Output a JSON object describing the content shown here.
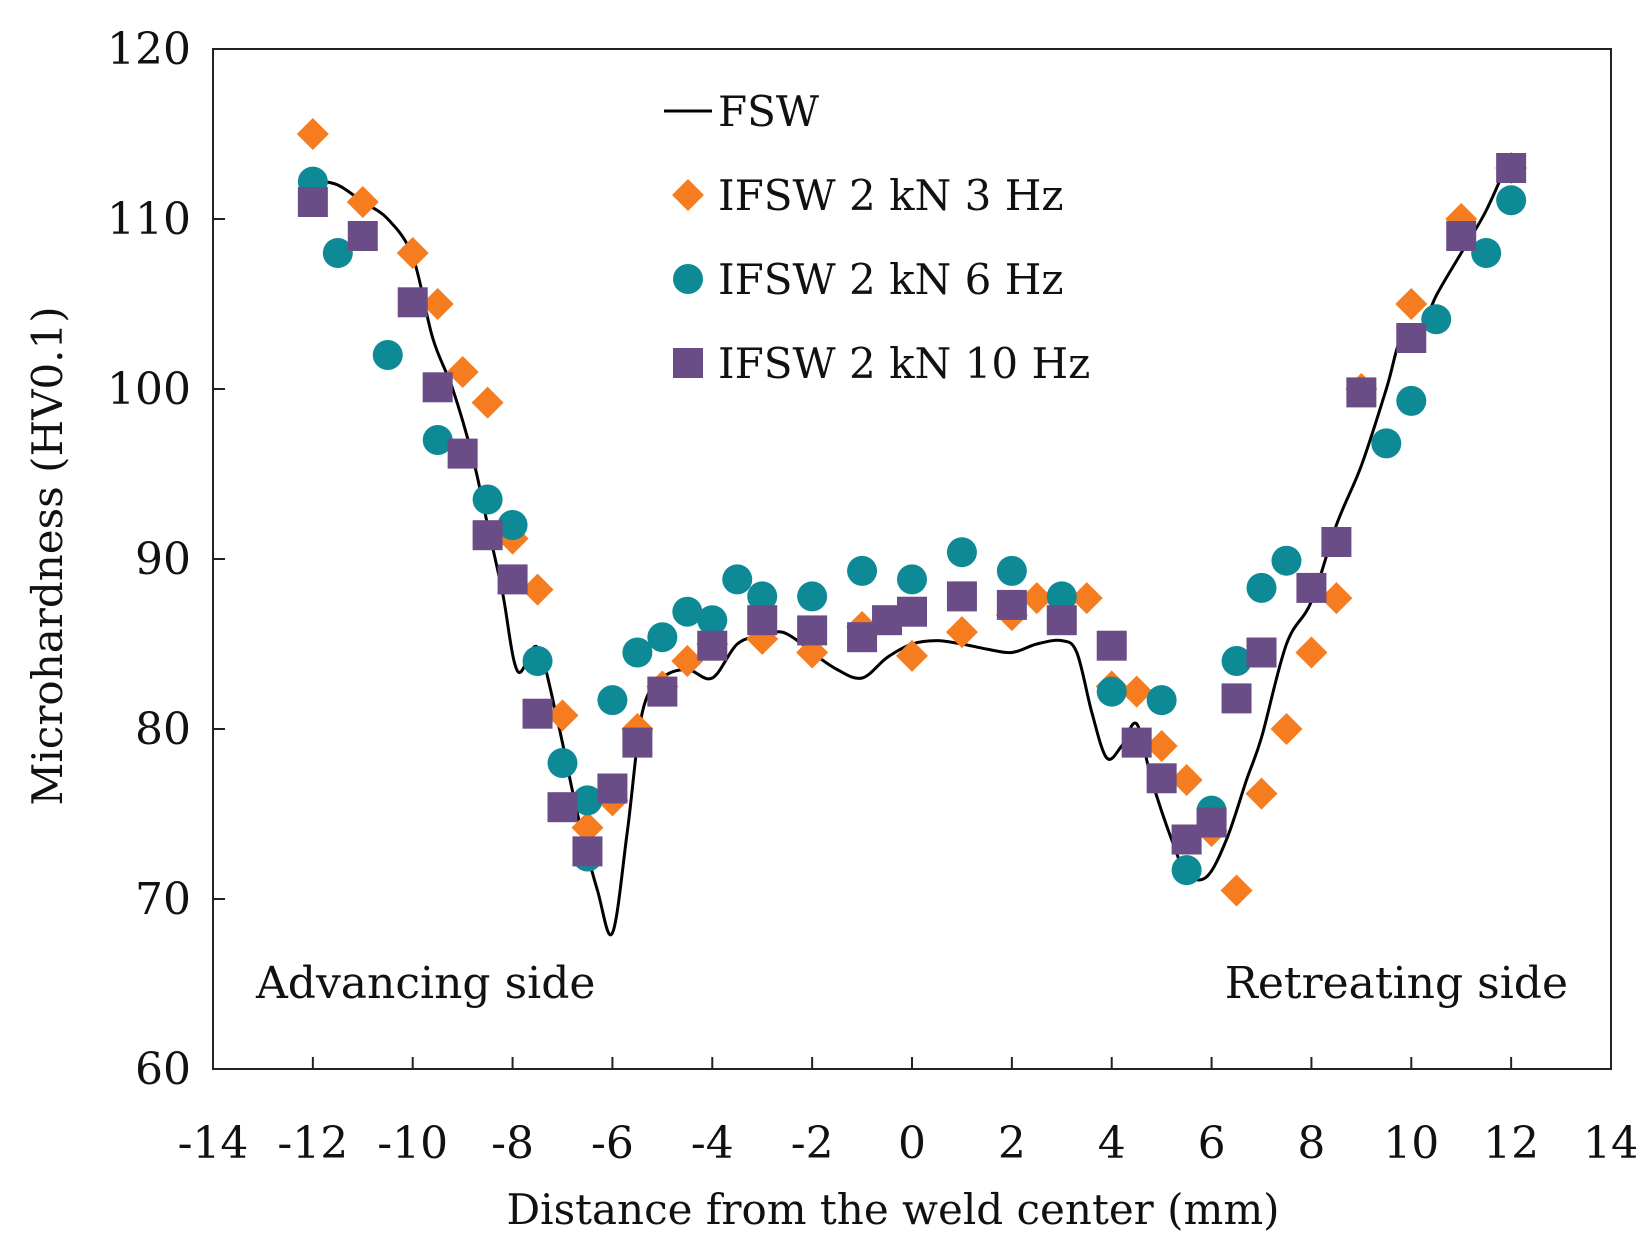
{
  "chart_data": {
    "type": "scatter",
    "title": "",
    "xlabel": "Distance from the weld center (mm)",
    "ylabel": "Microhardness (HV0.1)",
    "xlim": [
      -14,
      14
    ],
    "ylim": [
      60,
      120
    ],
    "xticks": [
      -14,
      -12,
      -10,
      -8,
      -6,
      -4,
      -2,
      0,
      2,
      4,
      6,
      8,
      10,
      12,
      14
    ],
    "yticks": [
      60,
      70,
      80,
      90,
      100,
      110,
      120
    ],
    "grid": false,
    "legend_position": "top-center",
    "annotations": [
      {
        "name": "advancing-side-label",
        "text": "Advancing side",
        "position": "bottom-left"
      },
      {
        "name": "retreating-side-label",
        "text": "Retreating side",
        "position": "bottom-right"
      }
    ],
    "series": [
      {
        "name": "FSW",
        "style": "line",
        "color": "#000000",
        "points": [
          [
            -12,
            112.3
          ],
          [
            -11.5,
            112
          ],
          [
            -11,
            111
          ],
          [
            -10.5,
            110
          ],
          [
            -10,
            107.8
          ],
          [
            -9.6,
            103
          ],
          [
            -9.2,
            100
          ],
          [
            -8.8,
            96
          ],
          [
            -8.5,
            92
          ],
          [
            -8.2,
            88
          ],
          [
            -7.9,
            83.4
          ],
          [
            -7.5,
            84.8
          ],
          [
            -7.1,
            80.5
          ],
          [
            -6.7,
            75
          ],
          [
            -6.3,
            70.5
          ],
          [
            -6,
            68
          ],
          [
            -5.7,
            74
          ],
          [
            -5.4,
            81
          ],
          [
            -5,
            83
          ],
          [
            -4.5,
            83.5
          ],
          [
            -4,
            83
          ],
          [
            -3.5,
            85
          ],
          [
            -3,
            85.5
          ],
          [
            -2.6,
            85.7
          ],
          [
            -2.2,
            85
          ],
          [
            -2,
            84.5
          ],
          [
            -1.5,
            83.5
          ],
          [
            -1,
            83
          ],
          [
            -0.5,
            84.2
          ],
          [
            0,
            85
          ],
          [
            0.5,
            85.2
          ],
          [
            1,
            85
          ],
          [
            1.5,
            84.7
          ],
          [
            2,
            84.5
          ],
          [
            2.5,
            85
          ],
          [
            3,
            85.2
          ],
          [
            3.3,
            84.5
          ],
          [
            3.6,
            81
          ],
          [
            3.9,
            78.3
          ],
          [
            4.2,
            79
          ],
          [
            4.5,
            80.3
          ],
          [
            4.8,
            77
          ],
          [
            5.2,
            73.5
          ],
          [
            5.5,
            71.5
          ],
          [
            5.9,
            71.3
          ],
          [
            6.3,
            73.5
          ],
          [
            6.7,
            77
          ],
          [
            7,
            79.5
          ],
          [
            7.5,
            85
          ],
          [
            8,
            87.5
          ],
          [
            8.5,
            92
          ],
          [
            9,
            95.5
          ],
          [
            9.5,
            100
          ],
          [
            9.8,
            103
          ],
          [
            10.2,
            103.5
          ],
          [
            10.5,
            105.5
          ],
          [
            11,
            108
          ],
          [
            11.5,
            110.5
          ],
          [
            12,
            113.8
          ]
        ]
      },
      {
        "name": "IFSW 2 kN 3 Hz",
        "style": "diamond",
        "color": "#F57C1F",
        "points": [
          [
            -12,
            115
          ],
          [
            -11,
            111
          ],
          [
            -10,
            108
          ],
          [
            -9.5,
            105
          ],
          [
            -9,
            101
          ],
          [
            -8.5,
            99.2
          ],
          [
            -8,
            91.2
          ],
          [
            -7.5,
            88.2
          ],
          [
            -7,
            80.8
          ],
          [
            -6.5,
            74.2
          ],
          [
            -6,
            75.8
          ],
          [
            -5.5,
            80
          ],
          [
            -5,
            82.5
          ],
          [
            -4.5,
            84
          ],
          [
            -4,
            85
          ],
          [
            -3,
            85.3
          ],
          [
            -2,
            84.5
          ],
          [
            -1,
            86
          ],
          [
            0,
            84.3
          ],
          [
            1,
            85.7
          ],
          [
            2,
            86.7
          ],
          [
            2.5,
            87.7
          ],
          [
            3,
            87.5
          ],
          [
            3.5,
            87.7
          ],
          [
            4,
            82.5
          ],
          [
            4.5,
            82.2
          ],
          [
            5,
            79
          ],
          [
            5.5,
            77
          ],
          [
            6,
            74
          ],
          [
            6.5,
            70.5
          ],
          [
            7,
            76.2
          ],
          [
            7.5,
            80
          ],
          [
            8,
            84.5
          ],
          [
            8.5,
            87.7
          ],
          [
            9,
            100
          ],
          [
            10,
            105
          ],
          [
            11,
            110
          ],
          [
            12,
            113
          ]
        ]
      },
      {
        "name": "IFSW 2 kN 6 Hz",
        "style": "circle",
        "color": "#0E8A96",
        "points": [
          [
            -12,
            112.2
          ],
          [
            -11.5,
            108
          ],
          [
            -10.5,
            102
          ],
          [
            -9.5,
            97
          ],
          [
            -8.5,
            93.5
          ],
          [
            -8,
            92
          ],
          [
            -7.5,
            84
          ],
          [
            -7,
            78
          ],
          [
            -6.5,
            75.8
          ],
          [
            -6.5,
            72.5
          ],
          [
            -6,
            81.7
          ],
          [
            -5.5,
            84.5
          ],
          [
            -5,
            85.4
          ],
          [
            -4.5,
            86.9
          ],
          [
            -4,
            86.4
          ],
          [
            -3.5,
            88.8
          ],
          [
            -3,
            87.8
          ],
          [
            -2,
            87.8
          ],
          [
            -1,
            89.3
          ],
          [
            0,
            88.8
          ],
          [
            1,
            90.4
          ],
          [
            2,
            89.3
          ],
          [
            3,
            87.8
          ],
          [
            4,
            82.2
          ],
          [
            5,
            81.7
          ],
          [
            5.5,
            71.7
          ],
          [
            6,
            75.2
          ],
          [
            6.5,
            84
          ],
          [
            7,
            88.3
          ],
          [
            7.5,
            89.9
          ],
          [
            9.5,
            96.8
          ],
          [
            10,
            99.3
          ],
          [
            10.5,
            104.1
          ],
          [
            11.5,
            108
          ],
          [
            12,
            111.1
          ]
        ]
      },
      {
        "name": "IFSW 2 kN 10 Hz",
        "style": "square",
        "color": "#6A4C87",
        "points": [
          [
            -12,
            111
          ],
          [
            -11,
            109
          ],
          [
            -10,
            105.1
          ],
          [
            -9.5,
            100.1
          ],
          [
            -9,
            96.2
          ],
          [
            -8.5,
            91.4
          ],
          [
            -8,
            88.8
          ],
          [
            -7.5,
            80.9
          ],
          [
            -7,
            75.4
          ],
          [
            -6.5,
            72.8
          ],
          [
            -6,
            76.5
          ],
          [
            -5.5,
            79.2
          ],
          [
            -5,
            82.2
          ],
          [
            -4,
            84.9
          ],
          [
            -3,
            86.4
          ],
          [
            -2,
            85.8
          ],
          [
            -1,
            85.4
          ],
          [
            -0.5,
            86.4
          ],
          [
            0,
            86.9
          ],
          [
            1,
            87.8
          ],
          [
            2,
            87.3
          ],
          [
            3,
            86.4
          ],
          [
            4,
            84.9
          ],
          [
            4.5,
            79.2
          ],
          [
            5,
            77.1
          ],
          [
            5.5,
            73.5
          ],
          [
            6,
            74.5
          ],
          [
            6.5,
            81.8
          ],
          [
            7,
            84.5
          ],
          [
            8,
            88.3
          ],
          [
            8.5,
            91
          ],
          [
            9,
            99.8
          ],
          [
            10,
            103
          ],
          [
            11,
            109
          ],
          [
            12,
            113
          ]
        ]
      }
    ]
  }
}
